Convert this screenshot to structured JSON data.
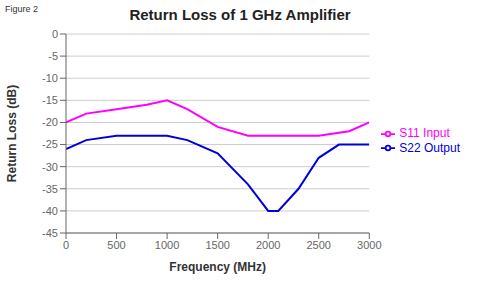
{
  "chart_data": {
    "type": "line",
    "title": "Return Loss of 1 GHz Amplifier",
    "annotations": [
      "Figure 2"
    ],
    "x_label": "Frequency (MHz)",
    "y_label": "Return Loss (dB)",
    "xlim": [
      0,
      3000
    ],
    "ylim": [
      -45,
      0
    ],
    "xticks": [
      0,
      500,
      1000,
      1500,
      2000,
      2500,
      3000
    ],
    "yticks": [
      0,
      -5,
      -10,
      -15,
      -20,
      -25,
      -30,
      -35,
      -40,
      -45
    ],
    "grid": "y",
    "legend": "right",
    "series": [
      {
        "name": "S11 Input",
        "color": "#ff00ff",
        "x": [
          0,
          200,
          500,
          800,
          1000,
          1200,
          1500,
          1800,
          2000,
          2200,
          2500,
          2800,
          3000
        ],
        "values": [
          -20,
          -18,
          -17,
          -16,
          -15,
          -17,
          -21,
          -23,
          -23,
          -23,
          -23,
          -22,
          -20
        ]
      },
      {
        "name": "S22 Output",
        "color": "#0000dd",
        "x": [
          0,
          200,
          500,
          800,
          1000,
          1200,
          1500,
          1800,
          2000,
          2100,
          2300,
          2500,
          2700,
          3000
        ],
        "values": [
          -26,
          -24,
          -23,
          -23,
          -23,
          -24,
          -27,
          -34,
          -40,
          -40,
          -35,
          -28,
          -25,
          -25
        ]
      }
    ]
  }
}
